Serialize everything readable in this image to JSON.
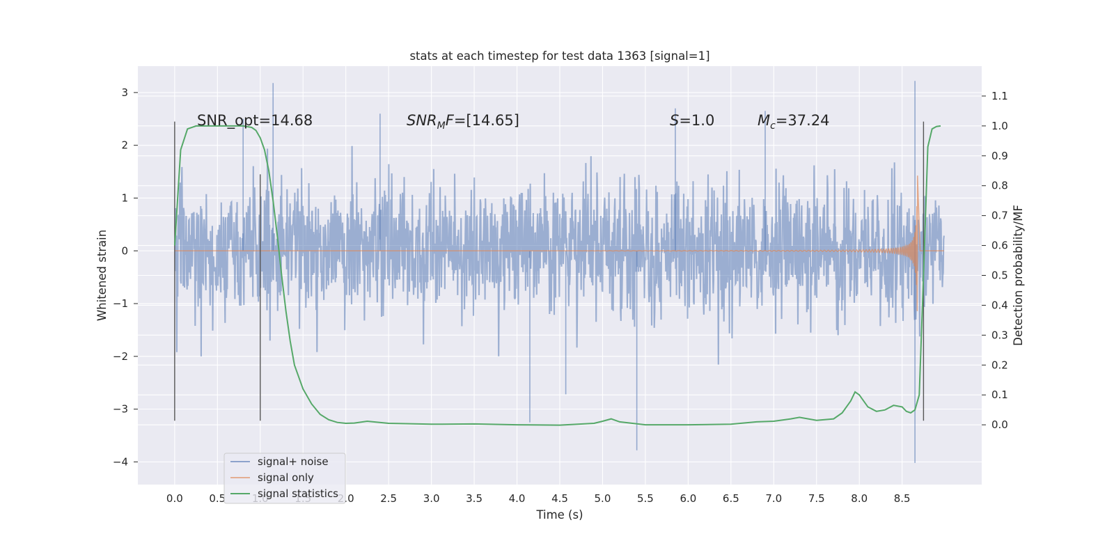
{
  "chart_data": {
    "type": "line",
    "title": "stats at each timestep for test data 1363 [signal=1]",
    "xlabel": "Time (s)",
    "ylabel": "Whitened strain",
    "ylabel_right": "Detection probability/MF",
    "xlim": [
      -0.43,
      9.43
    ],
    "ylim": [
      -4.43,
      3.5
    ],
    "ylim_right": [
      -0.2,
      1.2
    ],
    "x_ticks": [
      "0.0",
      "0.5",
      "1.0",
      "1.5",
      "2.0",
      "2.5",
      "3.0",
      "3.5",
      "4.0",
      "4.5",
      "5.0",
      "5.5",
      "6.0",
      "6.5",
      "7.0",
      "7.5",
      "8.0",
      "8.5"
    ],
    "y_ticks": [
      "3",
      "2",
      "1",
      "0",
      "−1",
      "−2",
      "−3",
      "−4"
    ],
    "y_ticks_right": [
      "1.1",
      "1.0",
      "0.9",
      "0.8",
      "0.7",
      "0.6",
      "0.5",
      "0.4",
      "0.3",
      "0.2",
      "0.1",
      "0.0"
    ],
    "grid": true,
    "legend_position": "lower-left",
    "annotations": {
      "snr_opt": "SNR_opt=14.68",
      "snr_mf_base": "SNR",
      "snr_mf_sub": "M",
      "snr_mf_rest": "F=[14.65]",
      "s_label": "S",
      "s_value": "=1.0",
      "mc_label": "M",
      "mc_sub": "c",
      "mc_value": "=37.24"
    },
    "vertical_lines": [
      {
        "x": 0.0,
        "y_range": [
          -3.22,
          2.45
        ]
      },
      {
        "x": 1.0,
        "y_range": [
          -3.22,
          1.45
        ]
      },
      {
        "x": 8.75,
        "y_range": [
          -3.22,
          2.45
        ]
      }
    ],
    "series": [
      {
        "name": "signal+ noise",
        "color": "#4c72b0",
        "noise_sigma": 0.75,
        "x_range": [
          0.0,
          8.99
        ],
        "spikes": [
          [
            0.8,
            2.5
          ],
          [
            1.15,
            3.18
          ],
          [
            2.4,
            2.6
          ],
          [
            4.15,
            -3.25
          ],
          [
            4.57,
            -2.72
          ],
          [
            5.4,
            -3.78
          ],
          [
            5.85,
            2.7
          ],
          [
            6.9,
            2.65
          ],
          [
            8.65,
            3.22
          ],
          [
            8.65,
            -4.02
          ]
        ]
      },
      {
        "name": "signal only",
        "color": "#dd8452",
        "chirp_start": 4.5,
        "merger_time": 8.66,
        "peak_amplitude": 2.92
      },
      {
        "name": "signal statistics",
        "color": "#55a868",
        "axis": "right",
        "x": [
          0.0,
          0.07,
          0.15,
          0.25,
          0.4,
          0.6,
          0.8,
          0.9,
          0.95,
          1.0,
          1.05,
          1.1,
          1.15,
          1.2,
          1.25,
          1.3,
          1.35,
          1.4,
          1.5,
          1.6,
          1.7,
          1.8,
          1.9,
          2.0,
          2.1,
          2.25,
          2.5,
          3.0,
          3.5,
          4.0,
          4.5,
          4.9,
          5.0,
          5.1,
          5.2,
          5.5,
          6.0,
          6.5,
          6.8,
          7.0,
          7.2,
          7.3,
          7.5,
          7.7,
          7.8,
          7.9,
          7.95,
          8.0,
          8.1,
          8.2,
          8.3,
          8.4,
          8.5,
          8.55,
          8.6,
          8.65,
          8.7,
          8.75,
          8.8,
          8.85,
          8.9,
          8.95
        ],
        "y": [
          0.6,
          0.92,
          0.99,
          1.0,
          1.0,
          1.0,
          1.0,
          0.995,
          0.985,
          0.96,
          0.92,
          0.85,
          0.75,
          0.63,
          0.5,
          0.38,
          0.28,
          0.2,
          0.12,
          0.07,
          0.035,
          0.017,
          0.008,
          0.005,
          0.006,
          0.012,
          0.005,
          0.002,
          0.003,
          0.0,
          -0.001,
          0.005,
          0.012,
          0.02,
          0.01,
          0.0,
          0.0,
          0.002,
          0.01,
          0.012,
          0.02,
          0.025,
          0.015,
          0.02,
          0.04,
          0.08,
          0.11,
          0.1,
          0.06,
          0.045,
          0.05,
          0.065,
          0.06,
          0.045,
          0.04,
          0.05,
          0.1,
          0.5,
          0.93,
          0.99,
          0.998,
          1.0
        ]
      }
    ],
    "legend": [
      "signal+ noise",
      "signal only",
      "signal statistics"
    ]
  }
}
